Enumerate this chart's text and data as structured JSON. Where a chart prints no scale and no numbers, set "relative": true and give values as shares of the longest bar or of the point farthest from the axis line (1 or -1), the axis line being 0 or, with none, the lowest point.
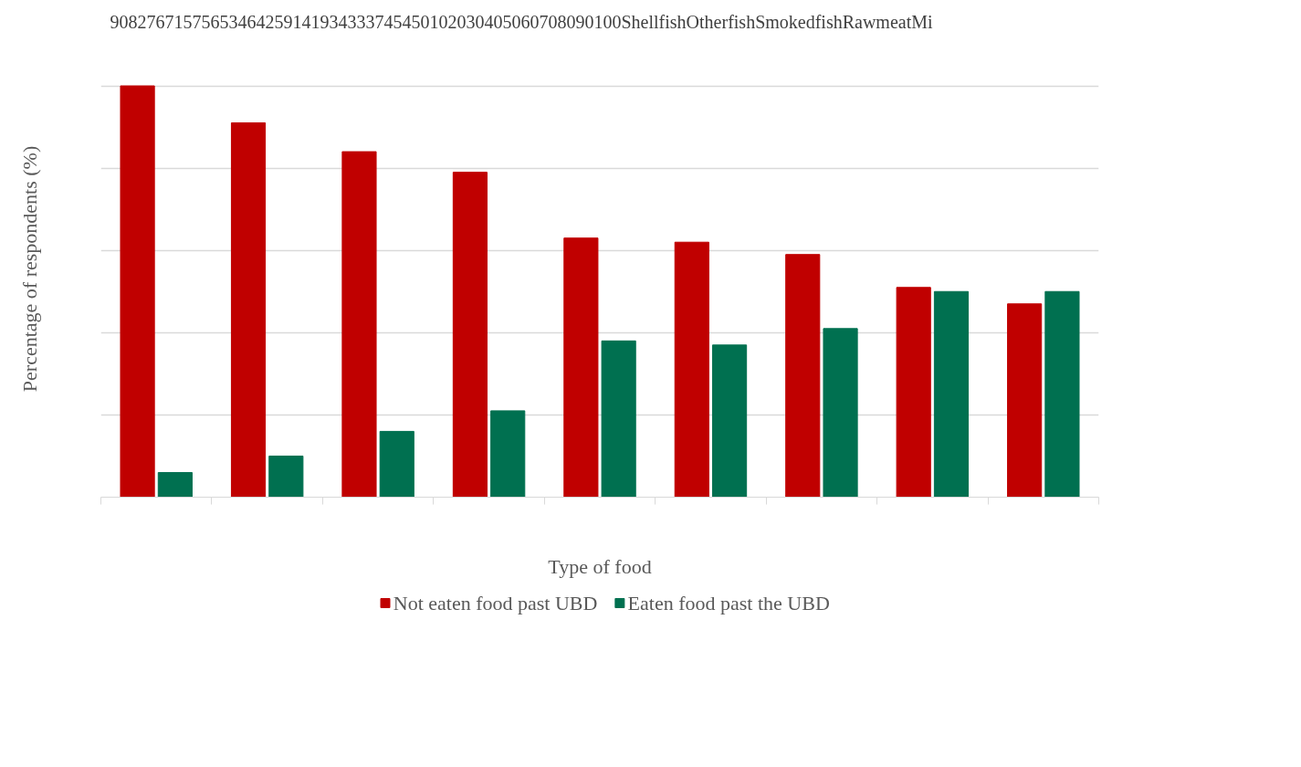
{
  "chart_data": {
    "type": "bar",
    "relative": true,
    "xlabel": "Type of food",
    "ylabel": "Percentage of respondents (%)",
    "categories": [
      null,
      null,
      null,
      null,
      null,
      null,
      null,
      null,
      null
    ],
    "series": [
      {
        "name": "Not eaten food past UBD",
        "color": "#c00000",
        "values": [
          1,
          0.91,
          0.84,
          0.79,
          0.63,
          0.62,
          0.59,
          0.51,
          0.47
        ]
      },
      {
        "name": "Eaten food past the UBD",
        "color": "#007050",
        "values": [
          0.06,
          0.1,
          0.16,
          0.21,
          0.38,
          0.37,
          0.41,
          0.5,
          0.5
        ]
      }
    ],
    "grid": "y",
    "legend": "bottom",
    "annotations": [
      "90827671575653464259141934333745450102030405060708090100ShellfishOtherfishSmokedfishRawmeatMi"
    ]
  }
}
